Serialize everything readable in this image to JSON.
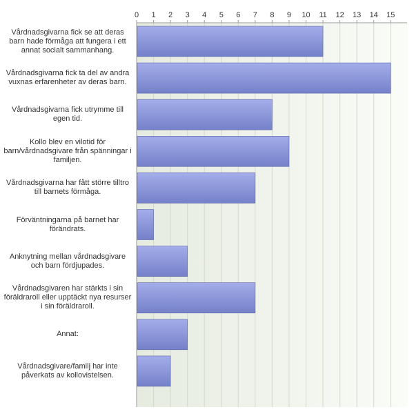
{
  "chart_data": {
    "type": "bar",
    "orientation": "horizontal",
    "title": "",
    "xlabel": "",
    "ylabel": "",
    "xlim": [
      0,
      16
    ],
    "ticks": [
      0,
      1,
      2,
      3,
      4,
      5,
      6,
      7,
      8,
      9,
      10,
      11,
      12,
      13,
      14,
      15
    ],
    "tick_position": "top",
    "grid": true,
    "legend": "none",
    "categories": [
      "Vårdnadsgivarna fick se att deras barn hade förmåga att fungera i ett annat socialt sammanhang.",
      "Vårdnadsgivarna fick ta del av andra vuxnas erfarenheter av deras barn.",
      "Vårdnadsgivarna fick utrymme till egen tid.",
      "Kollo blev en vilotid för barn/vårdnadsgivare från spänningar i familjen.",
      "Vårdnadsgivarna har fått större tilltro till barnets förmåga.",
      "Förväntningarna på barnet har förändrats.",
      "Anknytning mellan vårdnadsgivare och barn fördjupades.",
      "Vårdnadsgivaren har stärkts i sin föräldraroll eller upptäckt nya resurser i sin föräldraroll.",
      "Annat:",
      "Vårdnadsgivare/familj har inte påverkats av kollovistelsen."
    ],
    "values": [
      11,
      15,
      8,
      9,
      7,
      1,
      3,
      7,
      3,
      2
    ],
    "colors": {
      "bar_fill": "#8a95d8",
      "bar_stroke": "#5a64a8",
      "plot_bg_left": "#e6ebe0",
      "plot_bg_right": "#fafcf8",
      "grid": "#d4d8cc",
      "axis": "#9a9a9a"
    }
  }
}
